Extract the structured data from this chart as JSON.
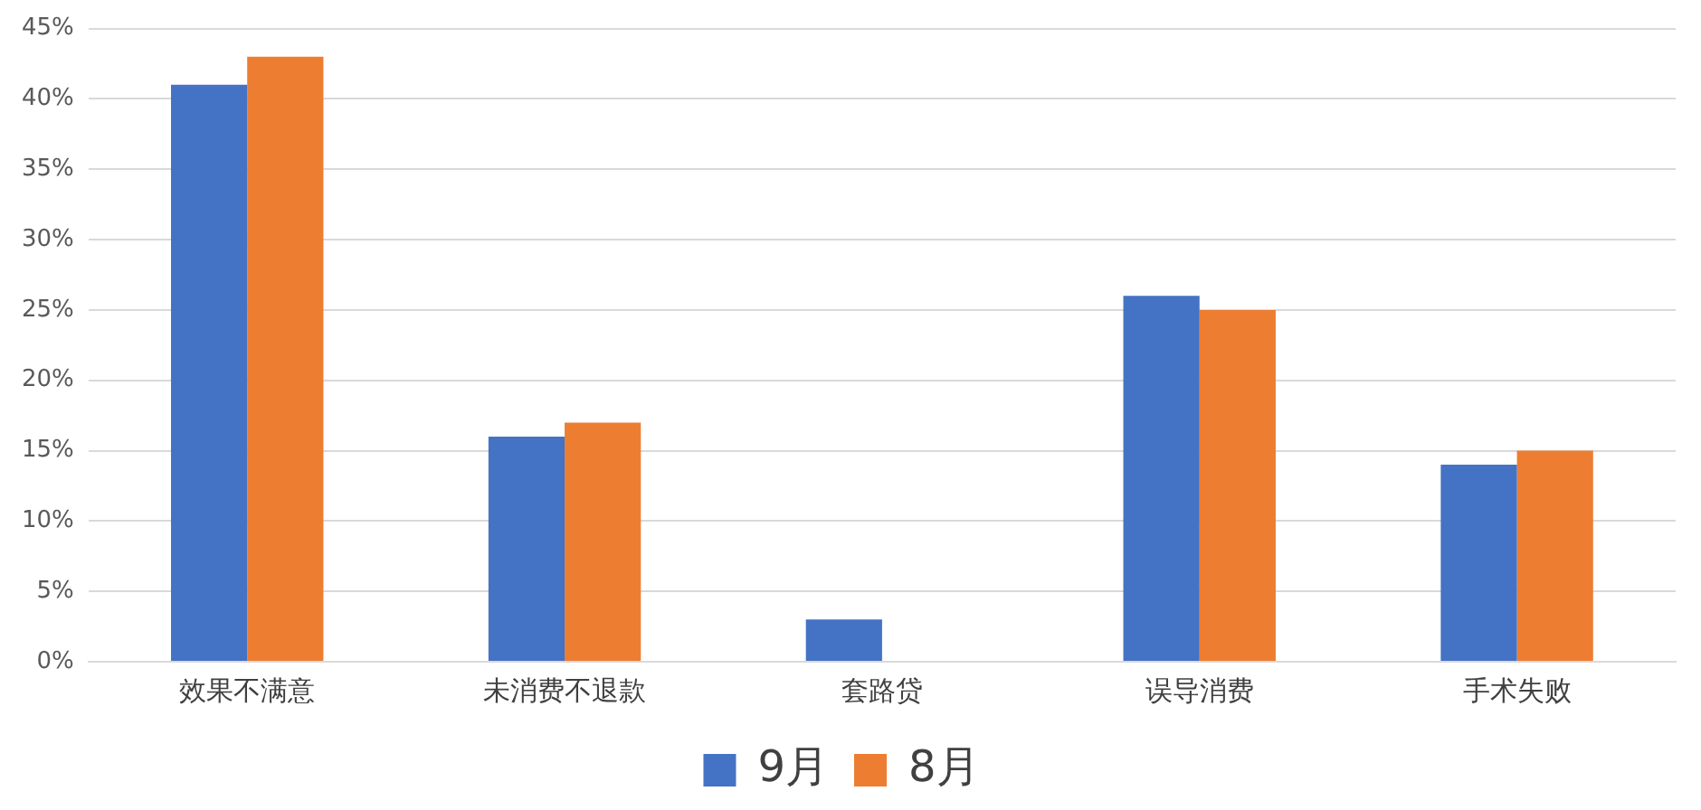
{
  "chart_data": {
    "type": "bar",
    "categories": [
      "效果不满意",
      "未消费不退款",
      "套路贷",
      "误导消费",
      "手术失败"
    ],
    "series": [
      {
        "name": "9月",
        "color": "#4472c4",
        "values": [
          41,
          16,
          3,
          26,
          14
        ]
      },
      {
        "name": "8月",
        "color": "#ed7d31",
        "values": [
          43,
          17,
          0,
          25,
          15
        ]
      }
    ],
    "ylim": [
      0,
      45
    ],
    "yticks": [
      {
        "value": 0,
        "label": "0%"
      },
      {
        "value": 5,
        "label": "5%"
      },
      {
        "value": 10,
        "label": "10%"
      },
      {
        "value": 15,
        "label": "15%"
      },
      {
        "value": 20,
        "label": "20%"
      },
      {
        "value": 25,
        "label": "25%"
      },
      {
        "value": 30,
        "label": "30%"
      },
      {
        "value": 35,
        "label": "35%"
      },
      {
        "value": 40,
        "label": "40%"
      },
      {
        "value": 45,
        "label": "45%"
      }
    ],
    "grid": "y",
    "legend": "bottom"
  }
}
